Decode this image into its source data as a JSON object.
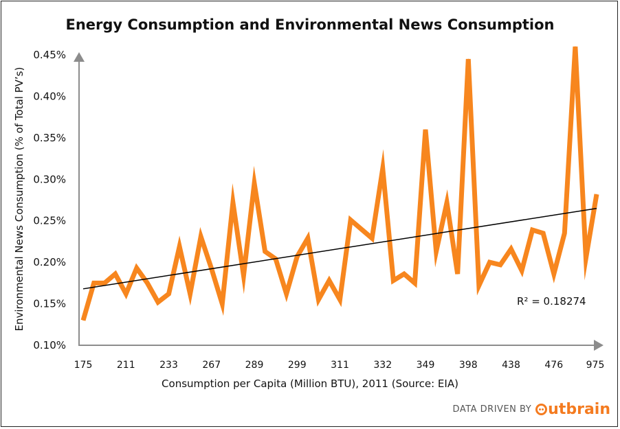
{
  "chart_data": {
    "type": "line",
    "title": "Energy Consumption and Environmental News Consumption",
    "xlabel": "Consumption per Capita (Million BTU), 2011 (Source: EIA)",
    "ylabel": "Environmental News Consumption (% of Total PV’s)",
    "y_ticks": [
      "0.10%",
      "0.15%",
      "0.20%",
      "0.25%",
      "0.30%",
      "0.35%",
      "0.40%",
      "0.45%"
    ],
    "ylim": [
      0.1,
      0.45
    ],
    "x_tick_labels": [
      "175",
      "211",
      "233",
      "267",
      "289",
      "299",
      "311",
      "332",
      "349",
      "398",
      "438",
      "476",
      "975"
    ],
    "x_tick_indices": [
      0,
      4,
      8,
      12,
      16,
      20,
      24,
      28,
      32,
      36,
      40,
      44,
      50
    ],
    "series": [
      {
        "color": "#f7861e",
        "values": [
          0.13,
          0.175,
          0.175,
          0.186,
          0.162,
          0.193,
          0.175,
          0.152,
          0.162,
          0.219,
          0.162,
          0.231,
          0.192,
          0.15,
          0.272,
          0.184,
          0.295,
          0.213,
          0.204,
          0.162,
          0.207,
          0.229,
          0.155,
          0.178,
          0.155,
          0.251,
          0.24,
          0.229,
          0.313,
          0.178,
          0.186,
          0.175,
          0.36,
          0.213,
          0.272,
          0.186,
          0.445,
          0.172,
          0.2,
          0.197,
          0.216,
          0.19,
          0.239,
          0.235,
          0.186,
          0.235,
          0.46,
          0.205,
          0.282
        ]
      }
    ],
    "trendline": {
      "start": 0.168,
      "end": 0.265,
      "color": "#000000"
    },
    "annotation": "R² = 0.18274",
    "grid": false
  },
  "footer": {
    "data_driven": "DATA DRIVEN BY",
    "brand": "utbrain"
  },
  "colors": {
    "line": "#f7861e",
    "axis": "#8c8c8c",
    "brand": "#f47b20"
  }
}
